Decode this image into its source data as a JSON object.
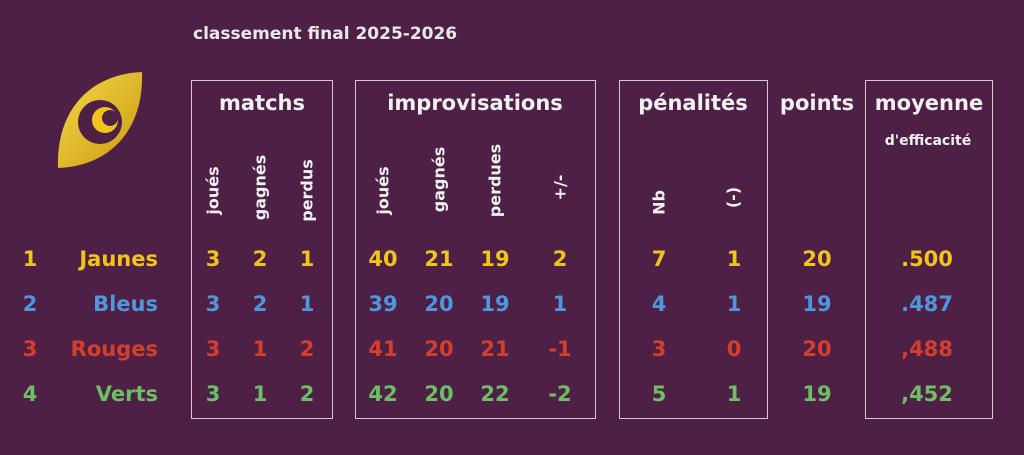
{
  "title": "classement final 2025-2026",
  "headers": {
    "matchs": "matchs",
    "improvisations": "improvisations",
    "penalites": "pénalités",
    "points": "points",
    "moyenne": "moyenne",
    "moyenne_sub": "d'efficacité"
  },
  "subheaders": {
    "matchs": [
      "joués",
      "gagnés",
      "perdus"
    ],
    "improvisations": [
      "joués",
      "gagnés",
      "perdues",
      "+/-"
    ],
    "penalites": [
      "Nb",
      "(-)"
    ]
  },
  "colors": {
    "background": "#4f2046",
    "Jaunes": "#f2c31b",
    "Bleus": "#4f96dd",
    "Rouges": "#d43f2c",
    "Verts": "#6cbf63"
  },
  "logo": {
    "icon": "eye-leaf-logo-icon"
  },
  "rows": [
    {
      "rank": "1",
      "team": "Jaunes",
      "color": "#f2c31b",
      "m_j": "3",
      "m_g": "2",
      "m_p": "1",
      "i_j": "40",
      "i_g": "21",
      "i_p": "19",
      "i_d": "2",
      "p_nb": "7",
      "p_m": "1",
      "points": "20",
      "moyenne": ".500"
    },
    {
      "rank": "2",
      "team": "Bleus",
      "color": "#4f96dd",
      "m_j": "3",
      "m_g": "2",
      "m_p": "1",
      "i_j": "39",
      "i_g": "20",
      "i_p": "19",
      "i_d": "1",
      "p_nb": "4",
      "p_m": "1",
      "points": "19",
      "moyenne": ".487"
    },
    {
      "rank": "3",
      "team": "Rouges",
      "color": "#d43f2c",
      "m_j": "3",
      "m_g": "1",
      "m_p": "2",
      "i_j": "41",
      "i_g": "20",
      "i_p": "21",
      "i_d": "-1",
      "p_nb": "3",
      "p_m": "0",
      "points": "20",
      "moyenne": ",488"
    },
    {
      "rank": "4",
      "team": "Verts",
      "color": "#6cbf63",
      "m_j": "3",
      "m_g": "1",
      "m_p": "2",
      "i_j": "42",
      "i_g": "20",
      "i_p": "22",
      "i_d": "-2",
      "p_nb": "5",
      "p_m": "1",
      "points": "19",
      "moyenne": ",452"
    }
  ]
}
